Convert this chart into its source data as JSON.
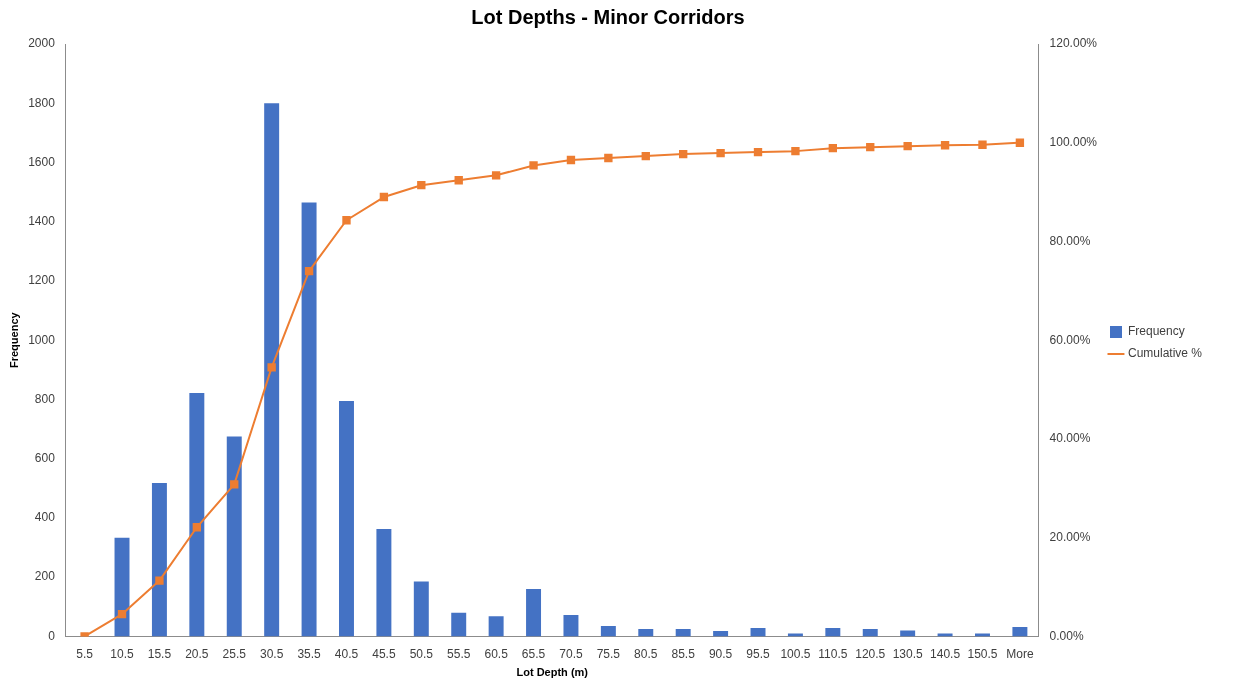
{
  "chart_data": {
    "type": "bar",
    "title": "Lot Depths - Minor Corridors",
    "xlabel": "Lot Depth (m)",
    "ylabel": "Frequency",
    "categories": [
      "5.5",
      "10.5",
      "15.5",
      "20.5",
      "25.5",
      "30.5",
      "35.5",
      "40.5",
      "45.5",
      "50.5",
      "55.5",
      "60.5",
      "65.5",
      "70.5",
      "75.5",
      "80.5",
      "85.5",
      "90.5",
      "95.5",
      "100.5",
      "110.5",
      "120.5",
      "130.5",
      "140.5",
      "150.5",
      "More"
    ],
    "series": [
      {
        "name": "Frequency",
        "color": "#4472c4",
        "values": [
          null,
          333,
          518,
          822,
          675,
          1800,
          1465,
          795,
          363,
          185,
          80,
          68,
          160,
          72,
          35,
          25,
          25,
          18,
          28,
          10,
          28,
          25,
          20,
          10,
          10,
          32
        ]
      },
      {
        "name": "Cumulative %",
        "type": "line",
        "axis": "y2",
        "color": "#ed7d31",
        "values": [
          0,
          4.5,
          11.3,
          22.1,
          30.8,
          54.5,
          74.0,
          84.3,
          89.0,
          91.4,
          92.4,
          93.4,
          95.4,
          96.5,
          96.9,
          97.3,
          97.7,
          97.9,
          98.1,
          98.3,
          98.9,
          99.1,
          99.3,
          99.5,
          99.6,
          100
        ]
      }
    ],
    "ylim": [
      0,
      2000
    ],
    "yticks": [
      0,
      200,
      400,
      600,
      800,
      1000,
      1200,
      1400,
      1600,
      1800,
      2000
    ],
    "y2lim": [
      0,
      120
    ],
    "y2ticks": [
      {
        "value": 0,
        "label": "0.00%"
      },
      {
        "value": 20,
        "label": "20.00%"
      },
      {
        "value": 40,
        "label": "40.00%"
      },
      {
        "value": 60,
        "label": "60.00%"
      },
      {
        "value": 80,
        "label": "80.00%"
      },
      {
        "value": 100,
        "label": "100.00%"
      },
      {
        "value": 120,
        "label": "120.00%"
      }
    ],
    "grid": false,
    "legend": "right",
    "marker": "square",
    "line_style": "solid"
  }
}
